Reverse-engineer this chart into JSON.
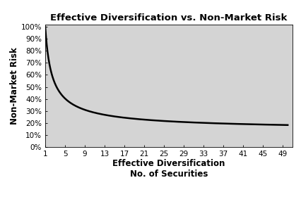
{
  "title": "Effective Diversification vs. Non-Market Risk",
  "xlabel_line1": "Effective Diversification",
  "xlabel_line2": "No. of Securities",
  "ylabel": "Non-Market Risk",
  "x_ticks": [
    1,
    5,
    9,
    13,
    17,
    21,
    25,
    29,
    33,
    37,
    41,
    45,
    49
  ],
  "y_ticks": [
    0,
    10,
    20,
    30,
    40,
    50,
    60,
    70,
    80,
    90,
    100
  ],
  "ylim": [
    0,
    102
  ],
  "xlim": [
    1,
    51
  ],
  "curve_color": "#000000",
  "curve_linewidth": 1.8,
  "background_color": "#ffffff",
  "plot_bg_color": "#d4d4d4",
  "title_fontsize": 9.5,
  "axis_label_fontsize": 8.5,
  "tick_fontsize": 7.5,
  "curve_a": 13.0,
  "curve_b": 87.0,
  "curve_c": 0.72
}
